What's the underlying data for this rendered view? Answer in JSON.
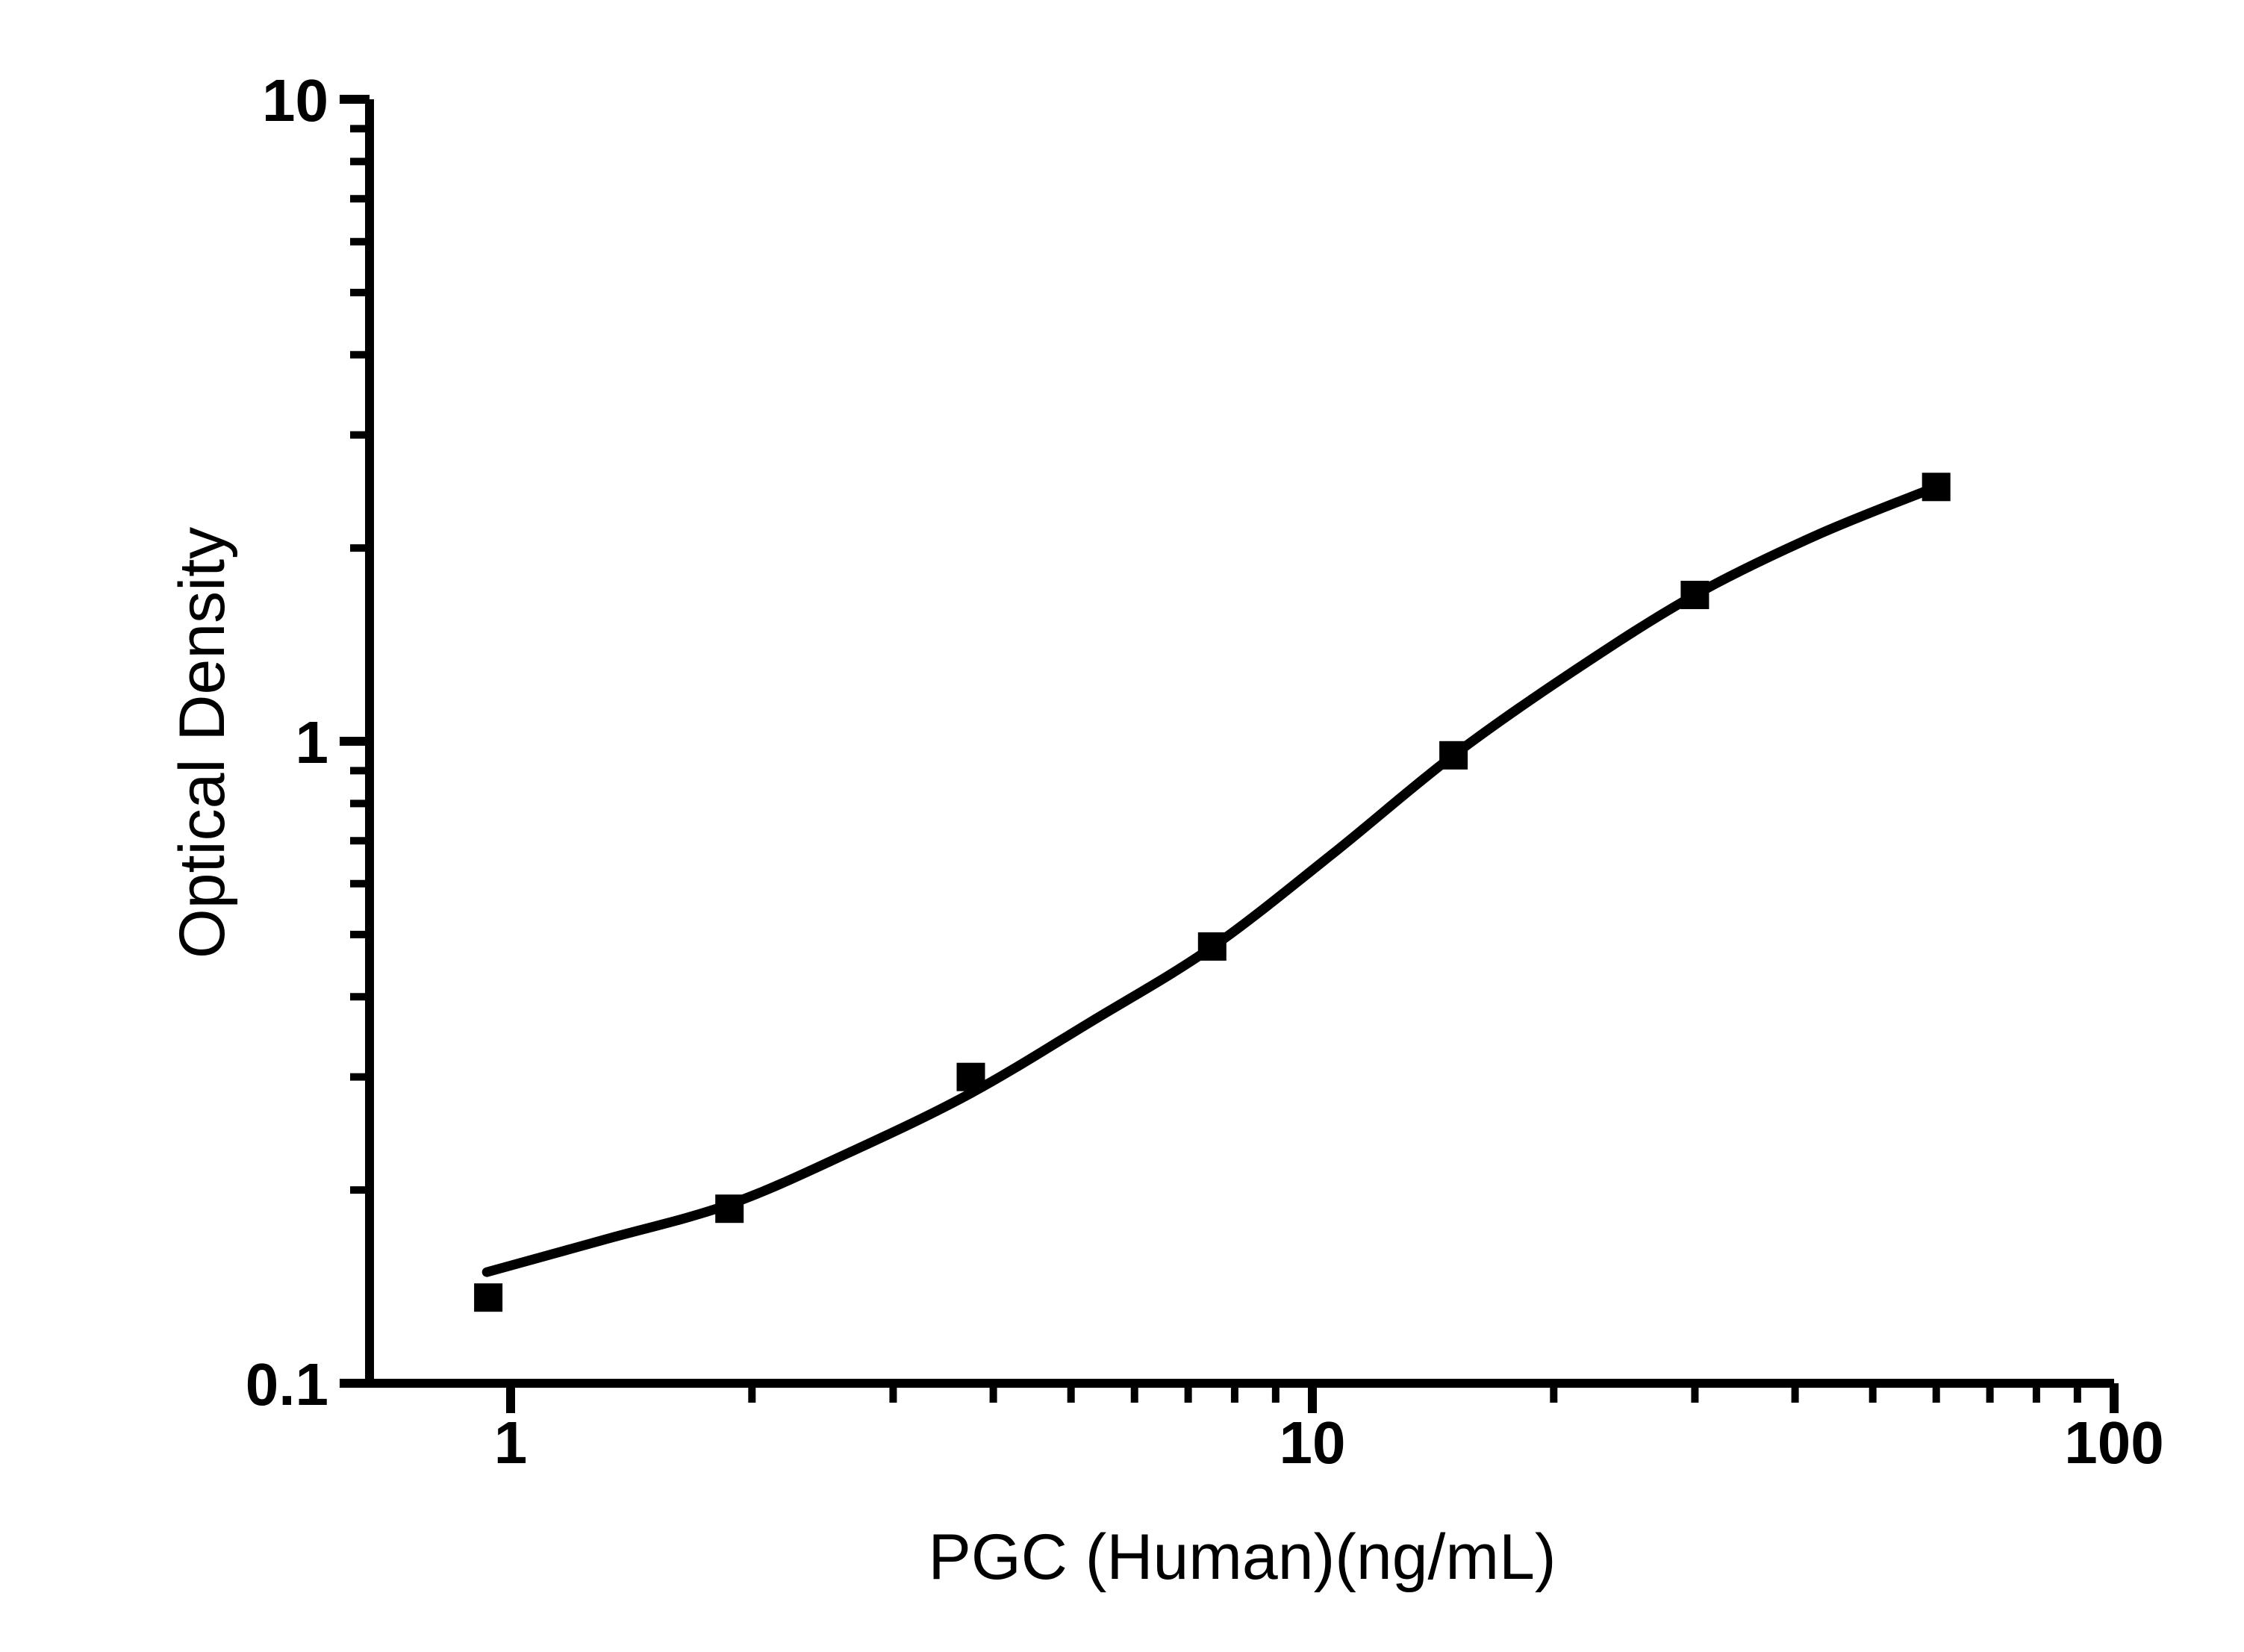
{
  "figure": {
    "background_color": "#ffffff",
    "foreground_color": "#000000"
  },
  "chart_data": {
    "type": "scatter",
    "title": "",
    "xlabel": "PGC (Human)(ng/mL)",
    "ylabel": "Optical Density",
    "x_scale": "log",
    "y_scale": "log",
    "xlim": [
      0.667,
      100
    ],
    "ylim": [
      0.1,
      10
    ],
    "grid": "off",
    "legend": "none",
    "x_major_ticks": [
      1,
      10,
      100
    ],
    "x_major_tick_labels": [
      "1",
      "10",
      "100"
    ],
    "x_minor_ticks": [
      2,
      3,
      4,
      5,
      6,
      7,
      8,
      9,
      20,
      30,
      40,
      50,
      60,
      70,
      80,
      90
    ],
    "y_major_ticks": [
      0.1,
      1,
      10
    ],
    "y_major_tick_labels": [
      "0.1",
      "1",
      "10"
    ],
    "y_minor_ticks": [
      0.2,
      0.3,
      0.4,
      0.5,
      0.6,
      0.7,
      0.8,
      0.9,
      2,
      3,
      4,
      5,
      6,
      7,
      8,
      9
    ],
    "series": [
      {
        "name": "standard-points",
        "kind": "scatter",
        "marker": "square",
        "color": "#000000",
        "points": [
          {
            "x": 0.938,
            "y": 0.136
          },
          {
            "x": 1.875,
            "y": 0.187
          },
          {
            "x": 3.75,
            "y": 0.3
          },
          {
            "x": 7.5,
            "y": 0.479
          },
          {
            "x": 15,
            "y": 0.951
          },
          {
            "x": 30,
            "y": 1.69
          },
          {
            "x": 60,
            "y": 2.49
          }
        ]
      },
      {
        "name": "fitted-curve",
        "kind": "line",
        "color": "#000000",
        "points": [
          {
            "x": 0.934,
            "y": 0.149
          },
          {
            "x": 1.3,
            "y": 0.167
          },
          {
            "x": 1.875,
            "y": 0.19
          },
          {
            "x": 2.65,
            "y": 0.229
          },
          {
            "x": 3.75,
            "y": 0.283
          },
          {
            "x": 5.3,
            "y": 0.366
          },
          {
            "x": 7.5,
            "y": 0.478
          },
          {
            "x": 10.6,
            "y": 0.668
          },
          {
            "x": 15,
            "y": 0.951
          },
          {
            "x": 21.2,
            "y": 1.288
          },
          {
            "x": 30,
            "y": 1.69
          },
          {
            "x": 42.4,
            "y": 2.09
          },
          {
            "x": 60,
            "y": 2.49
          }
        ]
      }
    ]
  }
}
